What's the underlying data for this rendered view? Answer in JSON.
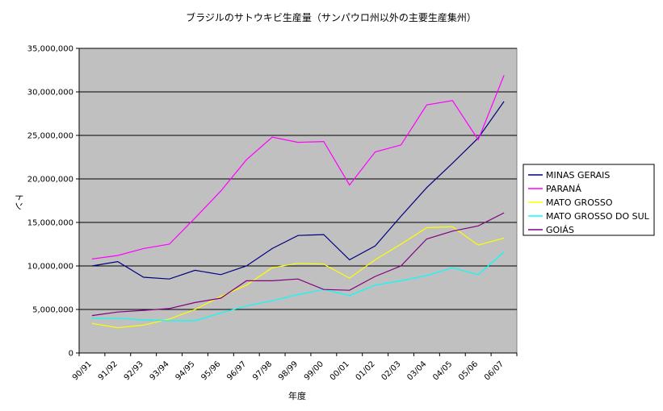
{
  "chart_data": {
    "type": "line",
    "title": "ブラジルのサトウキビ生産量（サンパウロ州以外の主要生産集州）",
    "xlabel": "年度",
    "ylabel": "トン",
    "ylim": [
      0,
      35000000
    ],
    "yticks": [
      0,
      5000000,
      10000000,
      15000000,
      20000000,
      25000000,
      30000000,
      35000000
    ],
    "ytick_labels": [
      "0",
      "5,000,000",
      "10,000,000",
      "15,000,000",
      "20,000,000",
      "25,000,000",
      "30,000,000",
      "35,000,000"
    ],
    "grid": "horizontal",
    "legend_position": "right",
    "plot_background": "#c0c0c0",
    "categories": [
      "90/91",
      "91/92",
      "92/93",
      "93/94",
      "94/95",
      "95/96",
      "96/97",
      "97/98",
      "98/99",
      "99/00",
      "00/01",
      "01/02",
      "02/03",
      "03/04",
      "04/05",
      "05/06",
      "06/07"
    ],
    "series": [
      {
        "name": "MINAS GERAIS",
        "color": "#000080",
        "values": [
          10000000,
          10500000,
          8700000,
          8500000,
          9500000,
          9000000,
          10000000,
          12000000,
          13500000,
          13600000,
          10700000,
          12300000,
          15700000,
          19000000,
          21800000,
          24700000,
          28900000
        ]
      },
      {
        "name": "PARANÁ",
        "color": "#ff00ff",
        "values": [
          10800000,
          11200000,
          12000000,
          12500000,
          15500000,
          18600000,
          22200000,
          24800000,
          24200000,
          24300000,
          19300000,
          23100000,
          23900000,
          28500000,
          29000000,
          24500000,
          31900000
        ]
      },
      {
        "name": "MATO GROSSO",
        "color": "#ffff00",
        "values": [
          3400000,
          2900000,
          3200000,
          3900000,
          5000000,
          6500000,
          7800000,
          9800000,
          10300000,
          10200000,
          8600000,
          10700000,
          12500000,
          14400000,
          14500000,
          12400000,
          13200000
        ]
      },
      {
        "name": "MATO GROSSO DO SUL",
        "color": "#00ffff",
        "values": [
          4000000,
          4000000,
          3800000,
          3700000,
          3700000,
          4600000,
          5400000,
          6000000,
          6700000,
          7300000,
          6600000,
          7800000,
          8300000,
          8900000,
          9800000,
          9000000,
          11600000
        ]
      },
      {
        "name": "GOIÁS",
        "color": "#800080",
        "values": [
          4300000,
          4700000,
          4900000,
          5100000,
          5800000,
          6300000,
          8300000,
          8300000,
          8500000,
          7300000,
          7200000,
          8800000,
          10000000,
          13100000,
          14000000,
          14600000,
          16100000
        ]
      }
    ]
  }
}
